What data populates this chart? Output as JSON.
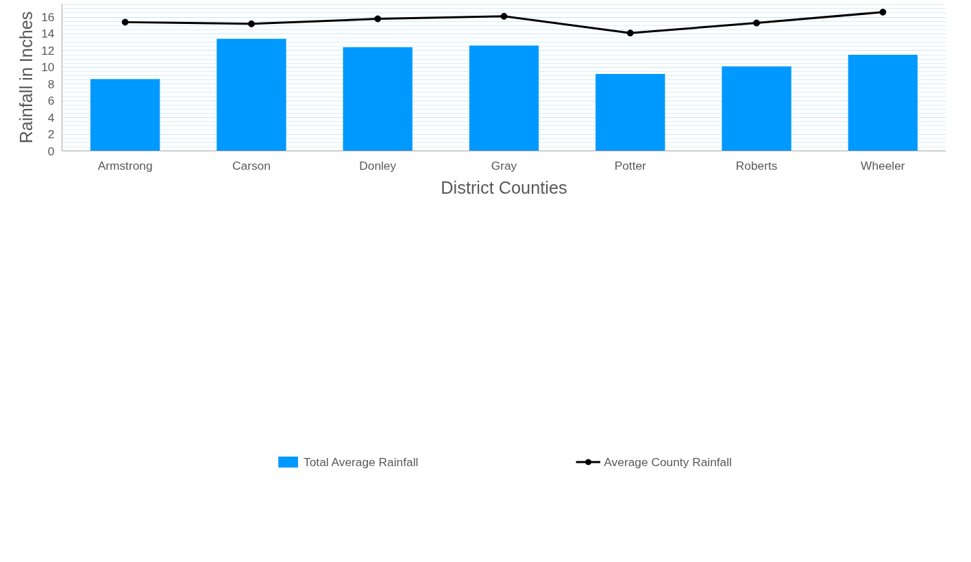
{
  "chart_data": {
    "type": "bar",
    "xlabel": "District Counties",
    "ylabel": "Rainfall in Inches",
    "categories": [
      "Armstrong",
      "Carson",
      "Donley",
      "Gray",
      "Potter",
      "Roberts",
      "Wheeler"
    ],
    "series": [
      {
        "name": "Total Average Rainfall",
        "color": "#0099ff",
        "values": [
          8.6,
          13.4,
          12.4,
          12.6,
          9.2,
          10.1,
          11.5
        ]
      },
      {
        "name": "Average County Rainfall",
        "type": "line",
        "color": "#000000",
        "marker": "circle",
        "values": [
          15.4,
          15.2,
          15.8,
          16.1,
          14.1,
          15.3,
          16.6
        ]
      }
    ],
    "ylim": [
      0,
      17.6
    ],
    "yticks": [
      0,
      2,
      4,
      6,
      8,
      10,
      12,
      14,
      16
    ],
    "grid": "y",
    "legend": "bottom"
  }
}
